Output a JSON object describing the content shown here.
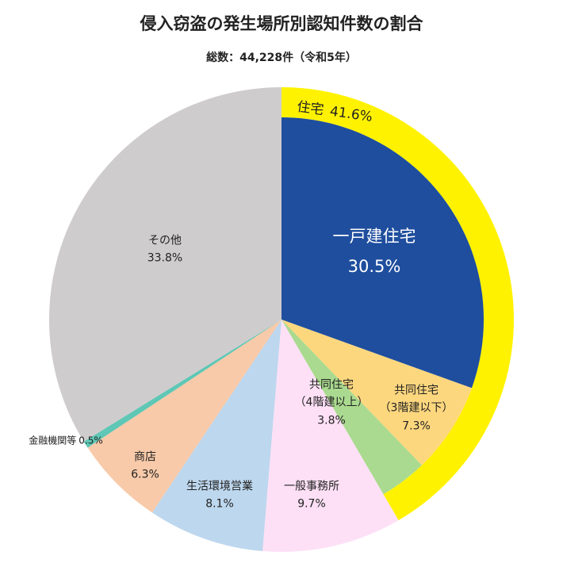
{
  "chart_data": {
    "type": "pie",
    "title": "侵入窃盗の発生場所別認知件数の割合",
    "subtitle": "総数：44,228件（令和5年）",
    "categories": [
      "一戸建住宅",
      "共同住宅\n（3階建以下）",
      "共同住宅\n（4階建以上）",
      "一般事務所",
      "生活環境営業",
      "商店",
      "金融機関等",
      "その他"
    ],
    "values": [
      30.5,
      7.3,
      3.8,
      9.7,
      8.1,
      6.3,
      0.5,
      33.8
    ],
    "value_labels": [
      "30.5%",
      "7.3%",
      "3.8%",
      "9.7%",
      "8.1%",
      "6.3%",
      "0.5%",
      "33.8%"
    ],
    "colors": [
      "#1f4e9e",
      "#fdd77e",
      "#aada8f",
      "#fde0f6",
      "#bdd7ee",
      "#f8caa9",
      "#5ec7b5",
      "#cfcccd"
    ],
    "highlight": {
      "label": "住宅",
      "value": 41.6,
      "value_label": "41.6%",
      "color": "#fff200"
    }
  }
}
